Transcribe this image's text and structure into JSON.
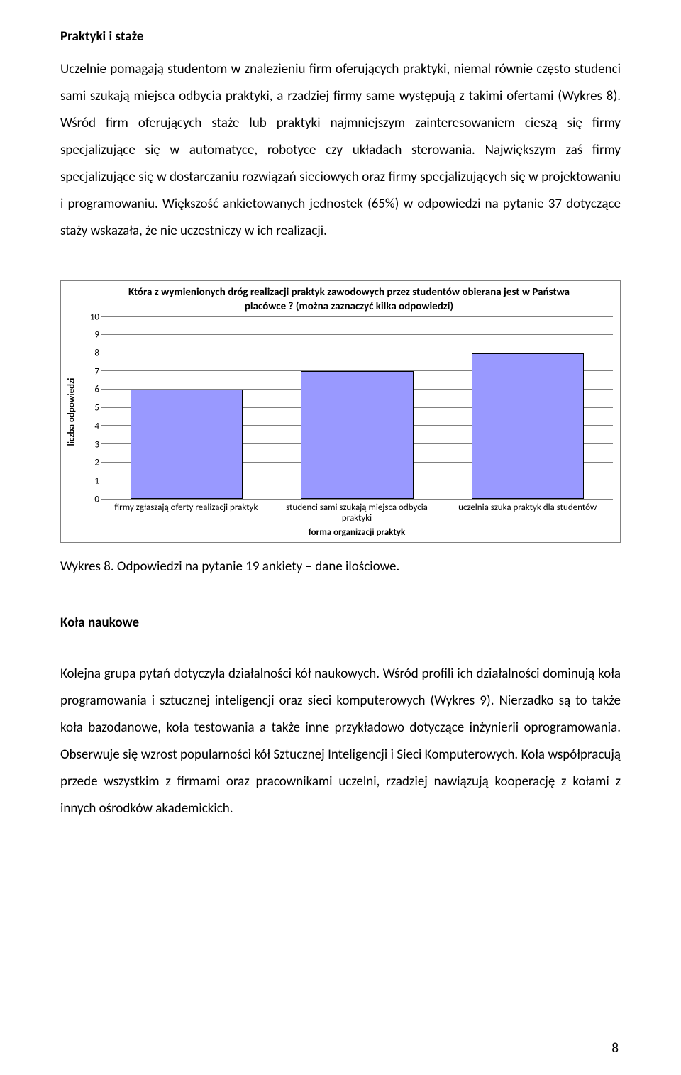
{
  "section1": {
    "heading": "Praktyki i staże",
    "para": "Uczelnie pomagają studentom w znalezieniu firm oferujących praktyki, niemal równie często studenci sami szukają miejsca odbycia praktyki, a rzadziej firmy same występują z takimi ofertami (Wykres 8). Wśród firm oferujących staże lub praktyki najmniejszym zainteresowaniem cieszą się firmy specjalizujące się w automatyce, robotyce czy układach sterowania. Największym zaś firmy specjalizujące się w dostarczaniu rozwiązań sieciowych oraz firmy specjalizujących się w projektowaniu i programowaniu. Większość ankietowanych jednostek (65%) w odpowiedzi na pytanie 37 dotyczące staży wskazała, że nie uczestniczy w ich realizacji."
  },
  "chart": {
    "type": "bar",
    "title": "Która z wymienionych dróg realizacji praktyk zawodowych przez studentów obierana jest w Państwa placówce ? (można zaznaczyć kilka odpowiedzi)",
    "ylabel": "liczba odpowiedzi",
    "xlabel": "forma organizacji praktyk",
    "categories": [
      "firmy zgłaszają oferty realizacji praktyk",
      "studenci sami szukają miejsca odbycia praktyki",
      "uczelnia szuka praktyk dla studentów"
    ],
    "values": [
      6,
      7,
      8
    ],
    "bar_fill": "#9999ff",
    "bar_stroke": "#000000",
    "ylim": [
      0,
      10
    ],
    "ytick_step": 1,
    "grid_color": "#808080",
    "background_color": "#ffffff",
    "bar_width": 0.66,
    "title_fontsize": 15,
    "label_fontsize": 13,
    "tick_fontsize": 13
  },
  "caption": "Wykres 8. Odpowiedzi na pytanie 19 ankiety – dane ilościowe.",
  "section2": {
    "heading": "Koła naukowe",
    "para": "Kolejna grupa pytań dotyczyła działalności kół naukowych. Wśród profili ich działalności dominują koła programowania i sztucznej inteligencji oraz sieci komputerowych (Wykres 9). Nierzadko są to także koła bazodanowe, koła testowania a także inne przykładowo dotyczące inżynierii oprogramowania. Obserwuje się wzrost popularności kół Sztucznej Inteligencji i Sieci Komputerowych. Koła współpracują przede wszystkim z firmami oraz pracownikami uczelni, rzadziej nawiązują kooperację z kołami z innych ośrodków akademickich."
  },
  "pageNumber": "8"
}
